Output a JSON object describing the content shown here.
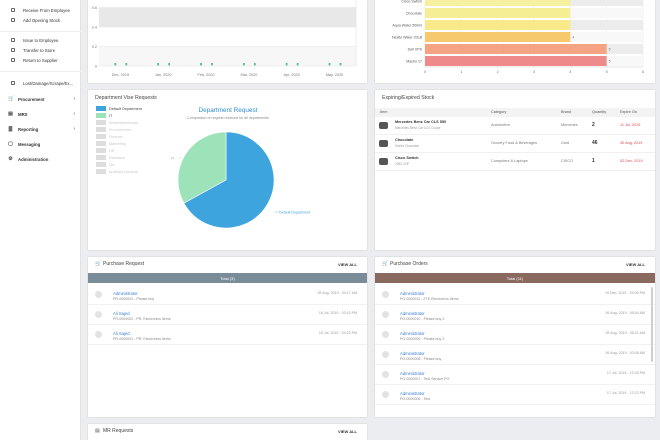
{
  "sidebar": {
    "sub_top": [
      {
        "label": "Receive From Employee",
        "icon": "receive-icon"
      },
      {
        "label": "Add Opening Stock",
        "icon": "add-stock-icon"
      }
    ],
    "sub_mid": [
      {
        "label": "Issue to Employee",
        "icon": "issue-icon"
      },
      {
        "label": "Transfer to Store",
        "icon": "transfer-icon"
      },
      {
        "label": "Return to Supplier",
        "icon": "return-icon"
      }
    ],
    "sub_low": [
      {
        "label": "Lost/Damage/Scrape/Ex...",
        "icon": "lost-icon"
      }
    ],
    "main": [
      {
        "label": "Procurement",
        "icon": "cart-icon"
      },
      {
        "label": "MRS",
        "icon": "document-icon"
      },
      {
        "label": "Reporting",
        "icon": "chart-icon"
      },
      {
        "label": "Messaging",
        "icon": "chat-icon"
      },
      {
        "label": "Administration",
        "icon": "gear-icon"
      }
    ]
  },
  "chart_data": [
    {
      "type": "line",
      "x": [
        "Dec, 2019",
        "Jan, 2020",
        "Feb, 2020",
        "Mar, 2020",
        "Apr, 2020",
        "May, 2020"
      ],
      "series": [
        {
          "values": [
            0,
            0,
            0,
            0,
            0,
            0
          ]
        }
      ],
      "yticks": [
        "0.8",
        "0.6",
        "0.4",
        "0.2",
        "0"
      ],
      "ylim": [
        0,
        0.8
      ]
    },
    {
      "type": "bar",
      "orientation": "horizontal",
      "categories": [
        "Cisco Switch",
        "Chocolate",
        "Aqua Water 500ml",
        "Nestle Water 20LB",
        "Dell XPS",
        "Macbo 17"
      ],
      "values": [
        4,
        4,
        4,
        4,
        5,
        5
      ],
      "value_labels": [
        "",
        "",
        "",
        "4",
        "5",
        "5"
      ],
      "colors": [
        "#f6f1a0",
        "#f6ee95",
        "#f8e98a",
        "#f7c96e",
        "#f4a383",
        "#ee8a8a"
      ],
      "xticks": [
        "0",
        "1",
        "2",
        "3",
        "4",
        "5",
        "6"
      ],
      "xlim": [
        0,
        6
      ]
    },
    {
      "type": "pie",
      "title": "Department Request",
      "subtitle": "Comparison of request received for all departments",
      "slices": [
        {
          "label": "Default Department",
          "value": 67,
          "color": "#3da4de"
        },
        {
          "label": "IT",
          "value": 33,
          "color": "#9de3b9"
        }
      ],
      "legend": [
        {
          "label": "Default Department",
          "color": "#3da4de",
          "active": true
        },
        {
          "label": "IT",
          "color": "#9de3b9",
          "active": true
        },
        {
          "label": "Store/Warehouse",
          "color": "#dddddd",
          "active": false
        },
        {
          "label": "Procurement",
          "color": "#dddddd",
          "active": false
        },
        {
          "label": "Finance",
          "color": "#dddddd",
          "active": false
        },
        {
          "label": "Marketing",
          "color": "#dddddd",
          "active": false
        },
        {
          "label": "HR",
          "color": "#dddddd",
          "active": false
        },
        {
          "label": "Research",
          "color": "#dddddd",
          "active": false
        },
        {
          "label": "QA",
          "color": "#dddddd",
          "active": false
        },
        {
          "label": "Ancillary General",
          "color": "#dddddd",
          "active": false
        }
      ],
      "callout_left": "IT",
      "callout_right": "Default Department"
    }
  ],
  "dept": {
    "title": "Department Vise Requests"
  },
  "stock": {
    "title": "Expiring/Expired Stock",
    "columns": [
      "Item",
      "Category",
      "Brand",
      "Quantity",
      "Expire On"
    ],
    "rows": [
      {
        "name": "Mercedes Benz Car CLS 550",
        "desc": "Mercedes Benz Car CLS Coupe",
        "category": "Automotive",
        "brand": "Mercedes",
        "qty": "2",
        "expire": "11 Jul, 2019",
        "icon": "car-icon"
      },
      {
        "name": "Chocolate",
        "desc": "Sweet Chocolate",
        "category": "Grocery Food & Beverages",
        "brand": "Gold",
        "qty": "46",
        "expire": "30 Aug, 2019",
        "icon": "chocolate-icon"
      },
      {
        "name": "Cisco Switch",
        "desc": "2050-24P",
        "category": "Computers & Laptops",
        "brand": "CISCO",
        "qty": "1",
        "expire": "02 Dec, 2019",
        "icon": "switch-icon"
      }
    ],
    "accent": "#e04848"
  },
  "purchase_request": {
    "title": "Purchase Request",
    "view_all": "VIEW ALL",
    "bar_label": "Total (3)",
    "bar_color": "#7b8c99",
    "items": [
      {
        "name": "Administrator",
        "desc": "PR-0000003 - Please buy",
        "date": "09 Aug, 2019 - 03:17 AM"
      },
      {
        "name": "Ali Sajed",
        "desc": "PR-0000002 - PR: Electronics Items",
        "date": "16 Jul, 2019 - 03:15 PM"
      },
      {
        "name": "Ali Sajed",
        "desc": "PR-0000001 - PR: Electronics Items",
        "date": "15 Jul, 2019 - 04:23 PM"
      }
    ]
  },
  "purchase_orders": {
    "title": "Purchase Orders",
    "view_all": "VIEW ALL",
    "bar_label": "Total (11)",
    "bar_color": "#8a6a5e",
    "items": [
      {
        "name": "Administrator",
        "desc": "PO-0000011 - ZTE Electronics Items",
        "date": "19 Dec, 2019 - 03:05 PM"
      },
      {
        "name": "Administrator",
        "desc": "PO-0000010 - Please buy 2",
        "date": "09 Aug, 2019 - 05:54 AM"
      },
      {
        "name": "Administrator",
        "desc": "PO-0000009 - Please buy 2",
        "date": "09 Aug, 2019 - 05:21 AM"
      },
      {
        "name": "Administrator",
        "desc": "PO-0000008 - Please buy",
        "date": "09 Aug, 2019 - 03:09 AM"
      },
      {
        "name": "Administrator",
        "desc": "PO-0000007 - Test Service PO",
        "date": "17 Jul, 2019 - 12:33 PM"
      },
      {
        "name": "Administrator",
        "desc": "PO-0000006 - Test",
        "date": "17 Jul, 2019 - 12:23 PM"
      }
    ]
  },
  "mr_requests": {
    "title": "MR Requests",
    "view_all": "VIEW ALL"
  }
}
